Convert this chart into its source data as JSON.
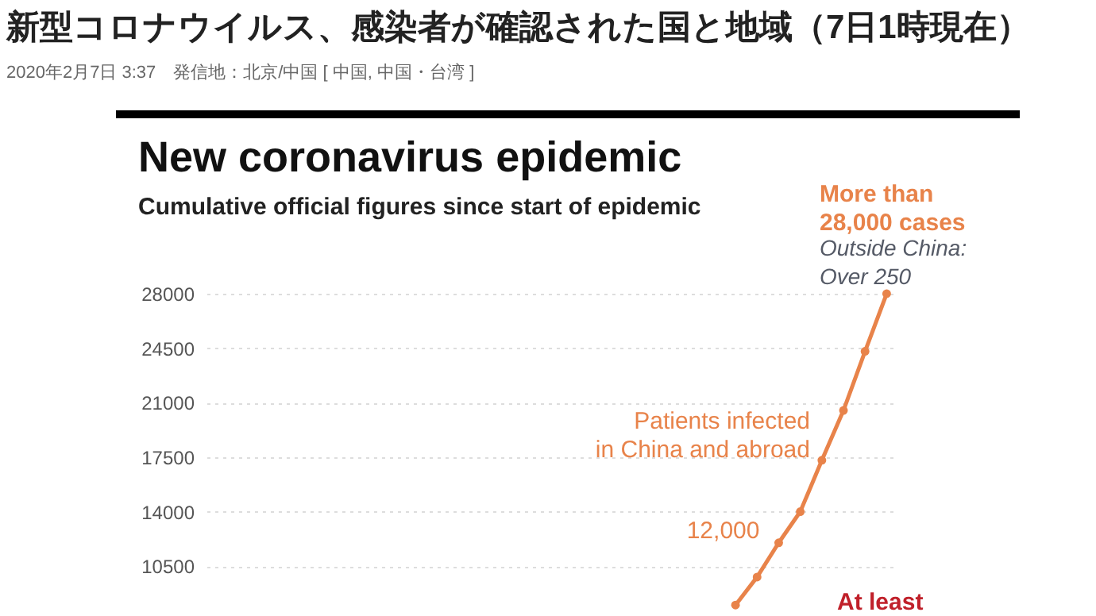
{
  "chart_data": {
    "type": "line",
    "title": "新型コロナウイルス、感染者が確認された国と地域（7日1時現在）",
    "subtitle": "2020年2月7日 3:37　発信地：北京/中国 [ 中国, 中国・台湾 ]",
    "categories": [
      null,
      null,
      null,
      null,
      null,
      null,
      null,
      null,
      null,
      null,
      null,
      null,
      null,
      null,
      null,
      null,
      null,
      null,
      null,
      null,
      null,
      null,
      null,
      null,
      null,
      null,
      null,
      null,
      null,
      null,
      null,
      null
    ],
    "series": [
      {
        "color": "#e8834a",
        "values": [
          null,
          null,
          null,
          null,
          null,
          null,
          null,
          null,
          null,
          null,
          null,
          null,
          null,
          null,
          null,
          null,
          null,
          null,
          null,
          null,
          null,
          null,
          null,
          null,
          8000,
          9800,
          12000,
          14000,
          17300,
          20500,
          24300,
          28000
        ],
        "value_labels": [
          null,
          null,
          null,
          null,
          null,
          null,
          null,
          null,
          null,
          null,
          null,
          null,
          null,
          null,
          null,
          null,
          null,
          null,
          null,
          null,
          null,
          null,
          null,
          null,
          null,
          null,
          "12,000",
          null,
          null,
          null,
          null,
          null
        ]
      }
    ],
    "ylim": [
      7500,
      28000
    ],
    "yticks": [
      10500,
      14000,
      17500,
      21000,
      24500,
      28000
    ],
    "grid": "y",
    "tick_labels": "y",
    "marker": "circle",
    "line_style": "solid",
    "annotations": [
      "New coronavirus epidemic",
      "Cumulative official figures since start of epidemic",
      "More than\n28,000 cases",
      "Outside China:\nOver 250",
      "Patients infected\nin China and abroad",
      "At least"
    ]
  }
}
